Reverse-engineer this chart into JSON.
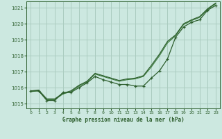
{
  "title": "Graphe pression niveau de la mer (hPa)",
  "background_color": "#cce8e0",
  "grid_color": "#aaccc0",
  "line_color_dark": "#2d5e2d",
  "line_color_mid": "#3a7a3a",
  "ylim": [
    1014.7,
    1021.4
  ],
  "yticks": [
    1015,
    1016,
    1017,
    1018,
    1019,
    1020,
    1021
  ],
  "xlim": [
    -0.5,
    23.5
  ],
  "xticks": [
    0,
    1,
    2,
    3,
    4,
    5,
    6,
    7,
    8,
    9,
    10,
    11,
    12,
    13,
    14,
    15,
    16,
    17,
    18,
    19,
    20,
    21,
    22,
    23
  ],
  "series_marker_x": [
    0,
    1,
    2,
    3,
    4,
    5,
    6,
    7,
    8,
    9,
    10,
    11,
    12,
    13,
    14,
    15,
    16,
    17,
    18,
    19,
    20,
    21,
    22,
    23
  ],
  "series_marker_y": [
    1015.8,
    1015.8,
    1015.2,
    1015.2,
    1015.7,
    1015.7,
    1016.0,
    1016.3,
    1016.7,
    1016.5,
    1016.35,
    1016.2,
    1016.2,
    1016.1,
    1016.1,
    1016.6,
    1017.05,
    1017.8,
    1019.15,
    1019.8,
    1020.1,
    1020.25,
    1020.85,
    1021.15
  ],
  "series_smooth1_x": [
    0,
    1,
    2,
    3,
    4,
    5,
    6,
    7,
    8,
    9,
    10,
    11,
    12,
    13,
    14,
    15,
    16,
    17,
    18,
    19,
    20,
    21,
    22,
    23
  ],
  "series_smooth1_y": [
    1015.75,
    1015.8,
    1015.25,
    1015.25,
    1015.6,
    1015.75,
    1016.1,
    1016.35,
    1016.85,
    1016.7,
    1016.55,
    1016.4,
    1016.5,
    1016.55,
    1016.7,
    1017.3,
    1018.0,
    1018.8,
    1019.25,
    1019.95,
    1020.2,
    1020.4,
    1020.9,
    1021.25
  ],
  "series_smooth2_x": [
    0,
    1,
    2,
    3,
    4,
    5,
    6,
    7,
    8,
    9,
    10,
    11,
    12,
    13,
    14,
    15,
    16,
    17,
    18,
    19,
    20,
    21,
    22,
    23
  ],
  "series_smooth2_y": [
    1015.8,
    1015.85,
    1015.3,
    1015.3,
    1015.65,
    1015.8,
    1016.15,
    1016.4,
    1016.9,
    1016.75,
    1016.6,
    1016.45,
    1016.55,
    1016.6,
    1016.75,
    1017.4,
    1018.1,
    1018.9,
    1019.3,
    1020.0,
    1020.25,
    1020.45,
    1020.95,
    1021.3
  ]
}
